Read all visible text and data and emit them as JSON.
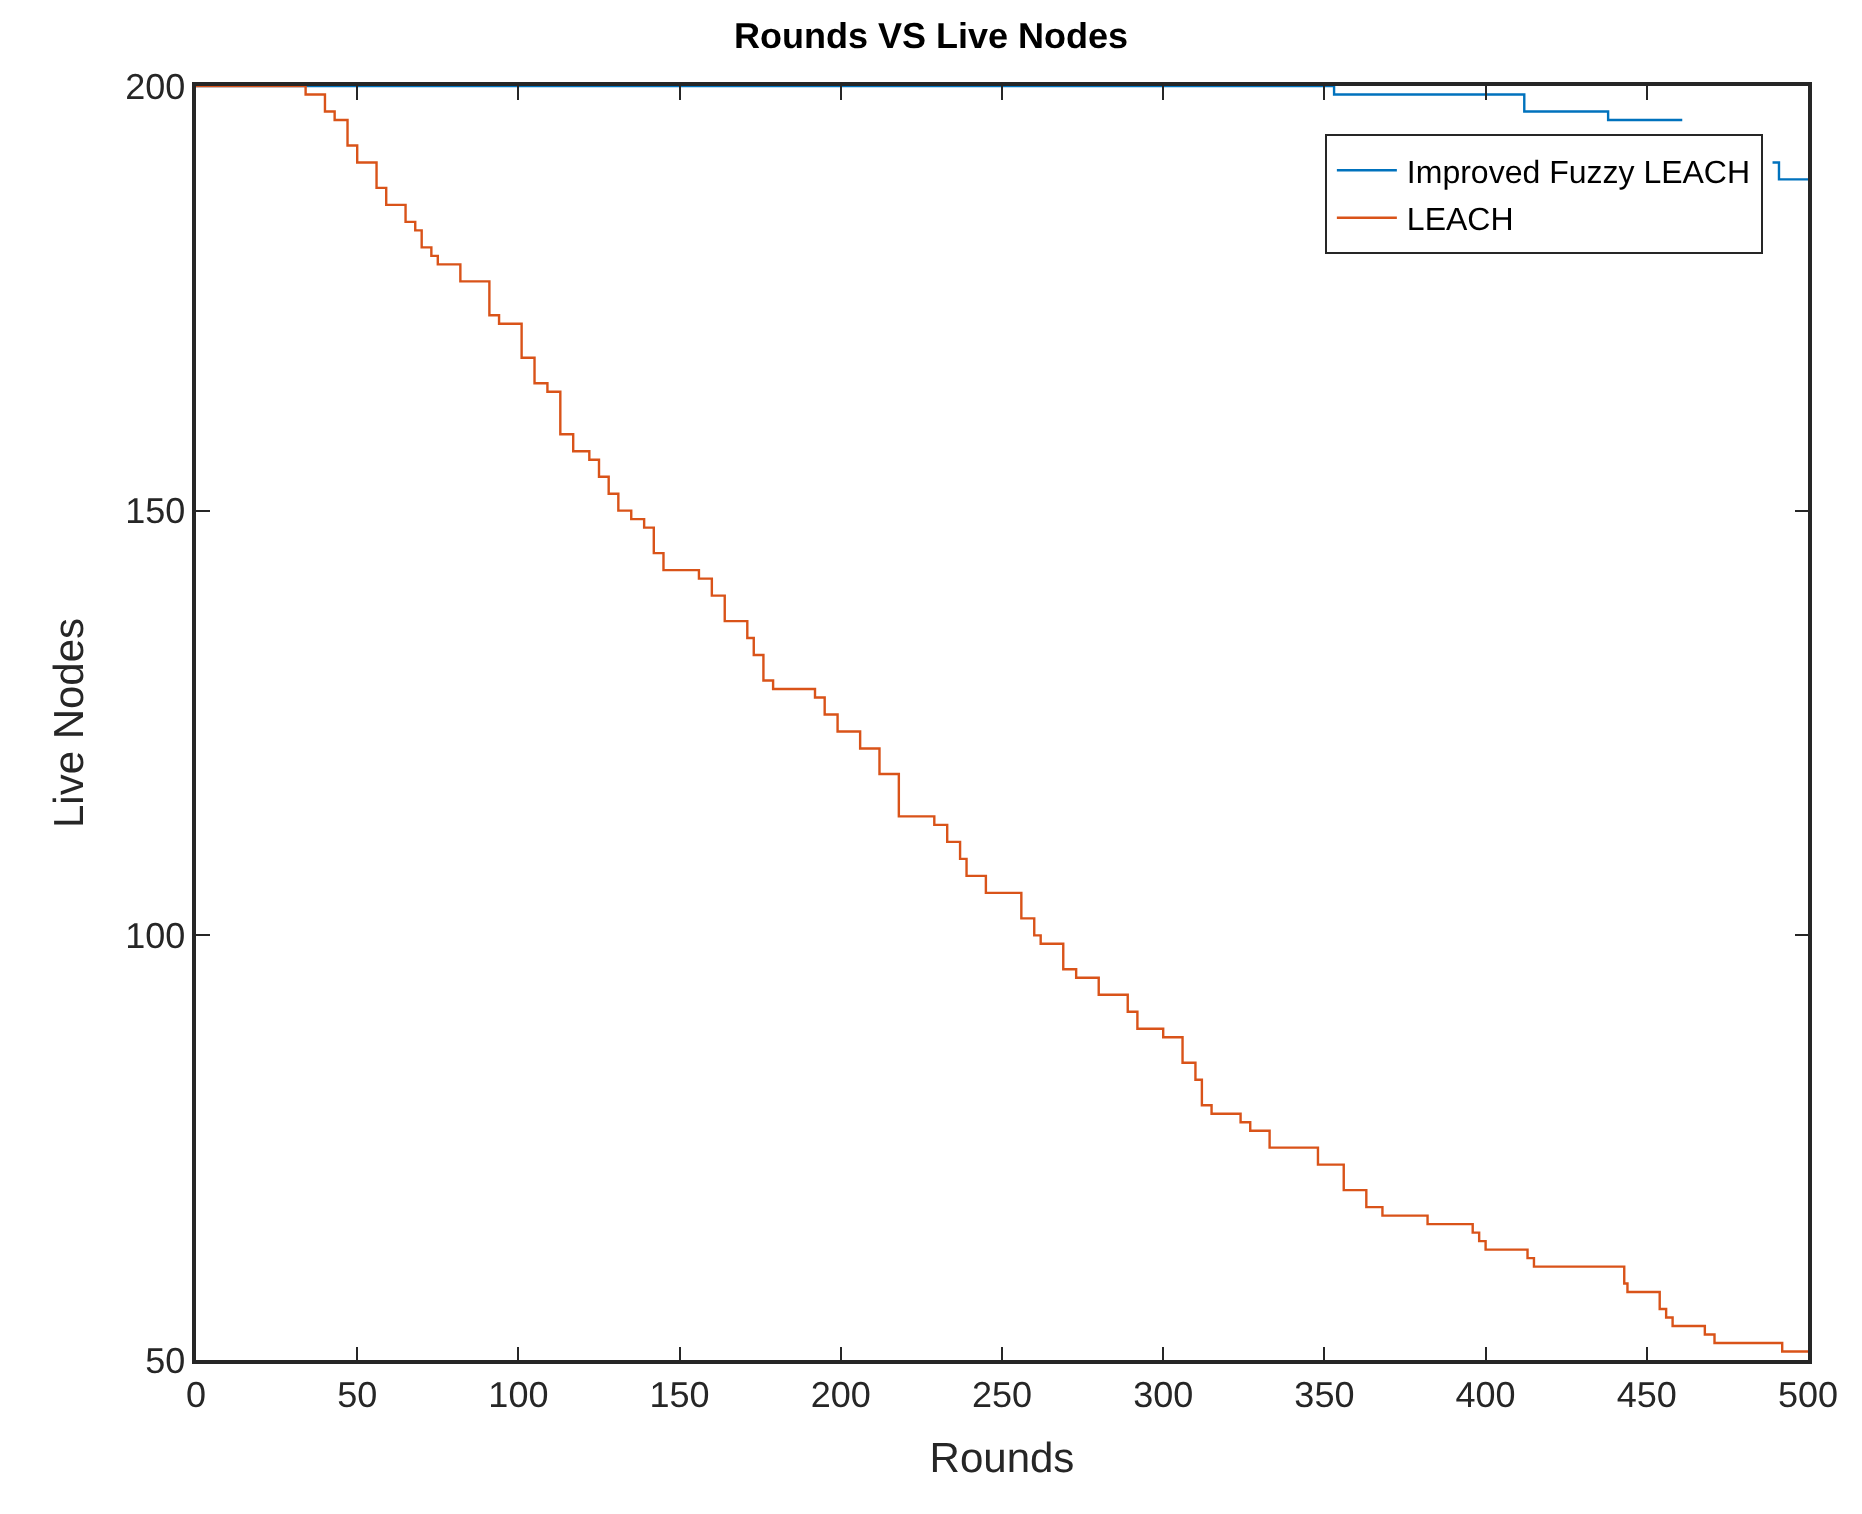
{
  "chart_data": {
    "type": "step",
    "title": "Rounds VS Live Nodes",
    "xlabel": "Rounds",
    "ylabel": "Live Nodes",
    "xlim": [
      0,
      500
    ],
    "xticks": [
      0,
      50,
      100,
      150,
      200,
      250,
      300,
      350,
      400,
      450,
      500
    ],
    "ylim": [
      50,
      200
    ],
    "yticks": [
      50,
      100,
      150,
      200
    ],
    "grid": false,
    "legend": "top right",
    "marker": "none",
    "line_style": "solid",
    "series": [
      {
        "name": "Improved Fuzzy LEACH",
        "color": "#0072bd",
        "x": [
          0,
          353,
          412,
          438,
          461,
          463,
          489,
          491,
          500
        ],
        "values": [
          200,
          199,
          197,
          196,
          196,
          null,
          191,
          189,
          189
        ]
      },
      {
        "name": "LEACH",
        "color": "#d95319",
        "x": [
          0,
          34,
          40,
          43,
          47,
          50,
          56,
          59,
          65,
          68,
          70,
          73,
          75,
          82,
          91,
          94,
          101,
          105,
          109,
          113,
          117,
          122,
          125,
          128,
          131,
          135,
          139,
          142,
          145,
          156,
          160,
          164,
          171,
          173,
          176,
          179,
          192,
          195,
          199,
          206,
          212,
          218,
          229,
          233,
          237,
          239,
          245,
          256,
          260,
          262,
          269,
          273,
          280,
          289,
          292,
          300,
          306,
          310,
          312,
          315,
          324,
          327,
          333,
          348,
          356,
          363,
          368,
          382,
          396,
          398,
          400,
          413,
          415,
          443,
          444,
          454,
          456,
          458,
          468,
          471,
          492,
          500
        ],
        "values": [
          200,
          199,
          197,
          196,
          193,
          191,
          188,
          186,
          184,
          183,
          181,
          180,
          179,
          177,
          173,
          172,
          168,
          165,
          164,
          159,
          157,
          156,
          154,
          152,
          150,
          149,
          148,
          145,
          143,
          142,
          140,
          137,
          135,
          133,
          130,
          129,
          128,
          126,
          124,
          122,
          119,
          114,
          113,
          111,
          109,
          107,
          105,
          102,
          100,
          99,
          96,
          95,
          93,
          91,
          89,
          88,
          85,
          83,
          80,
          79,
          78,
          77,
          75,
          73,
          70,
          68,
          67,
          66,
          65,
          64,
          63,
          62,
          61,
          59,
          58,
          56,
          55,
          54,
          53,
          52,
          51,
          51
        ]
      }
    ]
  }
}
